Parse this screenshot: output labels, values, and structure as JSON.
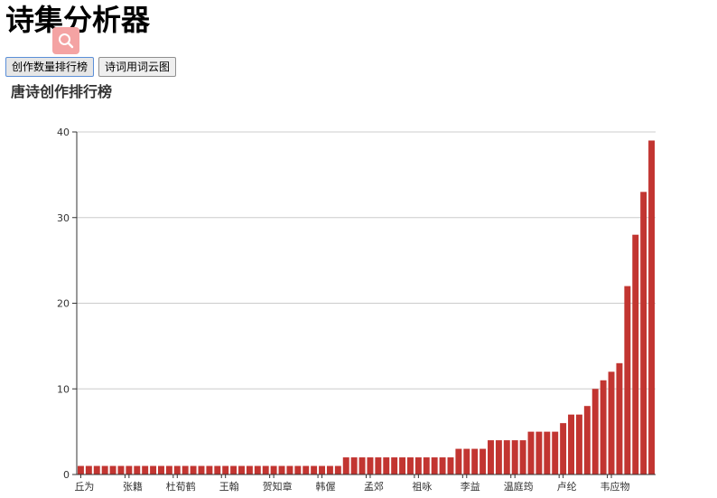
{
  "app": {
    "title": "诗集分析器"
  },
  "toolbar": {
    "buttons": [
      {
        "label": "创作数量排行榜",
        "active": true
      },
      {
        "label": "诗词用词云图",
        "active": false
      }
    ]
  },
  "colors": {
    "bar": "#c23531",
    "grid": "#cccccc",
    "axis": "#333333",
    "search_bg": "#f4a3a3"
  },
  "icons": {
    "search": "search-icon"
  },
  "chart_data": {
    "type": "bar",
    "title": "唐诗创作排行榜",
    "xlabel": "",
    "ylabel": "",
    "ylim": [
      0,
      40
    ],
    "yticks": [
      0,
      10,
      20,
      30,
      40
    ],
    "grid": true,
    "x_tick_labels": [
      {
        "index": 0,
        "label": "丘为"
      },
      {
        "index": 6,
        "label": "张籍"
      },
      {
        "index": 12,
        "label": "杜荀鹤"
      },
      {
        "index": 18,
        "label": "王翰"
      },
      {
        "index": 24,
        "label": "贺知章"
      },
      {
        "index": 30,
        "label": "韩偓"
      },
      {
        "index": 36,
        "label": "孟郊"
      },
      {
        "index": 42,
        "label": "祖咏"
      },
      {
        "index": 48,
        "label": "李益"
      },
      {
        "index": 54,
        "label": "温庭筠"
      },
      {
        "index": 60,
        "label": "卢纶"
      },
      {
        "index": 66,
        "label": "韦应物"
      }
    ],
    "values": [
      1,
      1,
      1,
      1,
      1,
      1,
      1,
      1,
      1,
      1,
      1,
      1,
      1,
      1,
      1,
      1,
      1,
      1,
      1,
      1,
      1,
      1,
      1,
      1,
      1,
      1,
      1,
      1,
      1,
      1,
      1,
      1,
      1,
      2,
      2,
      2,
      2,
      2,
      2,
      2,
      2,
      2,
      2,
      2,
      2,
      2,
      2,
      3,
      3,
      3,
      3,
      4,
      4,
      4,
      4,
      4,
      5,
      5,
      5,
      5,
      6,
      7,
      7,
      8,
      10,
      11,
      12,
      13,
      22,
      28,
      33,
      39
    ]
  }
}
